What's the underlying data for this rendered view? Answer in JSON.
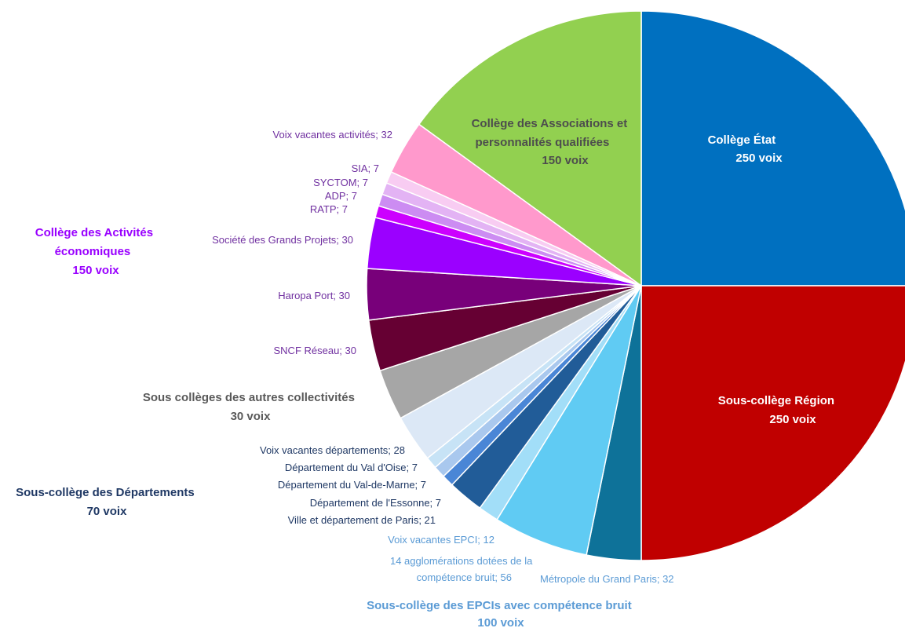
{
  "chart_data": {
    "type": "pie",
    "title": "",
    "slices": [
      {
        "label": "Collège État",
        "value": 250,
        "color": "#0070C0"
      },
      {
        "label": "Sous-collège Région",
        "value": 250,
        "color": "#C00000"
      },
      {
        "label": "Métropole du Grand Paris",
        "value": 32,
        "color": "#0E7299"
      },
      {
        "label": "14 agglomérations dotées de la compétence bruit",
        "value": 56,
        "color": "#60CBF3"
      },
      {
        "label": "Voix vacantes EPCI",
        "value": 12,
        "color": "#A2DEF8"
      },
      {
        "label": "Ville et département de Paris",
        "value": 21,
        "color": "#215C98"
      },
      {
        "label": "Département de l'Essonne",
        "value": 7,
        "color": "#4A86D6"
      },
      {
        "label": "Département du Val-de-Marne",
        "value": 7,
        "color": "#A9C8EE"
      },
      {
        "label": "Département du Val d'Oise",
        "value": 7,
        "color": "#C7E3F6"
      },
      {
        "label": "Voix vacantes départements",
        "value": 28,
        "color": "#DCE8F6"
      },
      {
        "label": "Sous collèges des autres collectivités",
        "value": 30,
        "color": "#A6A6A6"
      },
      {
        "label": "SNCF Réseau",
        "value": 30,
        "color": "#660033"
      },
      {
        "label": "Haropa Port",
        "value": 30,
        "color": "#78007A"
      },
      {
        "label": "Société des Grands Projets",
        "value": 30,
        "color": "#9B00FF"
      },
      {
        "label": "RATP",
        "value": 7,
        "color": "#CC00FF"
      },
      {
        "label": "ADP",
        "value": 7,
        "color": "#CC8CF2"
      },
      {
        "label": "SYCTOM",
        "value": 7,
        "color": "#E3B3F4"
      },
      {
        "label": "SIA",
        "value": 7,
        "color": "#F8CCF2"
      },
      {
        "label": "Voix vacantes activités",
        "value": 32,
        "color": "#FF99CC"
      },
      {
        "label": "Collège des Associations et personnalités qualifiées",
        "value": 150,
        "color": "#92D050"
      }
    ]
  },
  "labels": {
    "etat": [
      "Collège État",
      "250 voix"
    ],
    "region": [
      "Sous-collège Région",
      "250 voix"
    ],
    "assoc": [
      "Collège des Associations et",
      "personnalités qualifiées",
      "150 voix"
    ],
    "activites": [
      "Collège des Activités",
      "économiques",
      "150 voix"
    ],
    "autres": [
      "Sous collèges des autres collectivités",
      "30 voix"
    ],
    "departements": [
      "Sous-collège des Départements",
      "70 voix"
    ],
    "epci": [
      "Sous-collège des EPCIs avec compétence bruit",
      "100 voix"
    ],
    "voix_vacantes_activites": "Voix vacantes activités; 32",
    "sia": "SIA; 7",
    "syctom": "SYCTOM; 7",
    "adp": "ADP; 7",
    "ratp": "RATP; 7",
    "sgp": "Société des Grands Projets; 30",
    "haropa": "Haropa Port; 30",
    "sncf": "SNCF Réseau; 30",
    "voix_vacantes_dep": "Voix vacantes départements; 28",
    "val_oise": "Département du Val d'Oise; 7",
    "val_marne": "Département du Val-de-Marne; 7",
    "essonne": "Département de l'Essonne; 7",
    "paris": "Ville et département de Paris; 21",
    "voix_vacantes_epci": "Voix vacantes EPCI; 12",
    "agglo": [
      "14 agglomérations dotées de la",
      "compétence bruit; 56"
    ],
    "mgp": "Métropole du Grand Paris; 32"
  },
  "colors": {
    "white_text": "#FFFFFF",
    "assoc_text": "#4D4D4D",
    "purple_text": "#7030A0",
    "magenta_title": "#9900FF",
    "gray_title": "#595959",
    "navy_text": "#1F3864",
    "light_blue_text": "#5B9BD5"
  }
}
